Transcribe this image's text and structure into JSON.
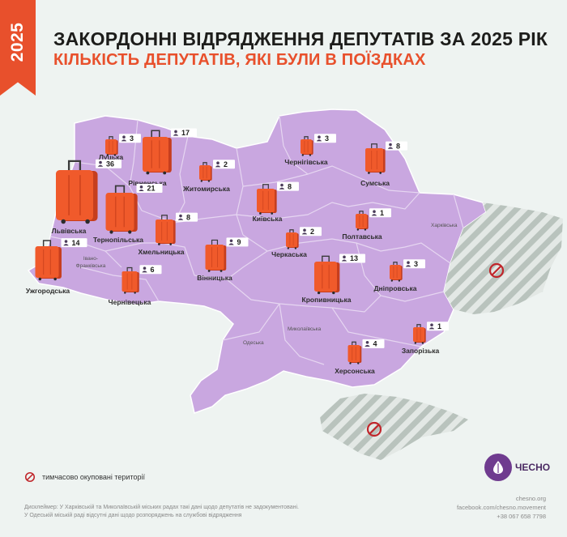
{
  "year": "2025",
  "title": "ЗАКОРДОННІ ВІДРЯДЖЕННЯ ДЕПУТАТІВ ЗА 2025 РІК",
  "subtitle": "КІЛЬКІСТЬ ДЕПУТАТІВ, ЯКІ БУЛИ В ПОЇЗДКАХ",
  "colors": {
    "accent": "#e8502c",
    "region_fill": "#c9a7e0",
    "region_border": "#e6d6f1",
    "occupied_stripe": "#b9c3bd",
    "background": "#eef3f1"
  },
  "legend": {
    "occupied_label": "тимчасово окуповані території",
    "icon": "no-entry-icon"
  },
  "disclaimer": [
    "Дисклеймер: У Харківській та Миколаївській міських радах такі дані щодо депутатів не задокументовані.",
    "У Одеській міській раді відсутні дані щодо розпоряджень на службові відрядження"
  ],
  "logo": {
    "text": "ЧЕСНО"
  },
  "contacts": [
    "chesno.org",
    "facebook.com/chesno.movement",
    "+38 067 658 7798"
  ],
  "chart_data": {
    "type": "bar",
    "mark": "suitcase (size proportional to value) on map of Ukraine",
    "categories": [
      "Львівська",
      "Рівненська",
      "Тернопільська",
      "Поптавська",
      "Кропивницька",
      "Хмельницька",
      "Вінницька",
      "Київська",
      "Сумська",
      "Житомирська",
      "Луцька",
      "Чернігівська",
      "Дніпровська",
      "Чернівецька",
      "Херсонська",
      "Черкаська",
      "Ужгородська",
      "Полтавська",
      "Запорізька"
    ],
    "values": [
      36,
      17,
      21,
      0,
      13,
      8,
      9,
      8,
      8,
      2,
      3,
      3,
      3,
      6,
      4,
      2,
      14,
      1,
      1
    ],
    "regions": [
      {
        "name": "Луцька",
        "value": 3
      },
      {
        "name": "Рівненська",
        "value": 17
      },
      {
        "name": "Житомирська",
        "value": 2
      },
      {
        "name": "Чернігівська",
        "value": 3
      },
      {
        "name": "Сумська",
        "value": 8
      },
      {
        "name": "Львівська",
        "value": 36
      },
      {
        "name": "Тернопільська",
        "value": 21
      },
      {
        "name": "Хмельницька",
        "value": 8
      },
      {
        "name": "Київська",
        "value": 8
      },
      {
        "name": "Полтавська",
        "value": 1
      },
      {
        "name": "Ужгородська",
        "value": 14
      },
      {
        "name": "Вінницька",
        "value": 9
      },
      {
        "name": "Черкаська",
        "value": 2
      },
      {
        "name": "Кропивницька",
        "value": 13
      },
      {
        "name": "Дніпровська",
        "value": 3
      },
      {
        "name": "Чернівецька",
        "value": 6
      },
      {
        "name": "Херсонська",
        "value": 4
      },
      {
        "name": "Запорізька",
        "value": 1
      }
    ],
    "no_data_labels": [
      "Харківська",
      "Івано-Франківська",
      "Одеська",
      "Миколаївська"
    ]
  }
}
